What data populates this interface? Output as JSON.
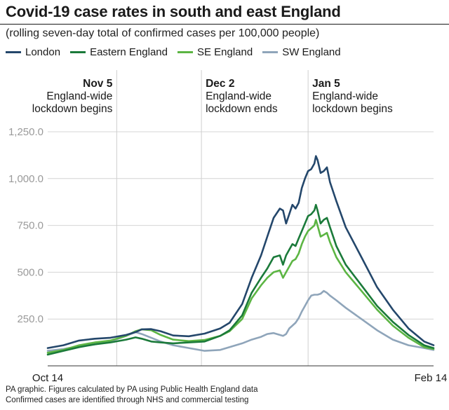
{
  "chart_data": {
    "type": "line",
    "title": "Covid-19 case rates in south and east England",
    "subtitle": "(rolling seven-day total of confirmed cases per 100,000 people)",
    "x_start_label": "Oct 14",
    "x_end_label": "Feb 14",
    "x_days": 123,
    "ylim": [
      0,
      1250
    ],
    "yticks": [
      "1,250.0",
      "1,000.0",
      "750.0",
      "500.0",
      "250.0"
    ],
    "ytick_values": [
      1250,
      1000,
      750,
      500,
      250
    ],
    "annotations": [
      {
        "day": 22,
        "date": "Nov 5",
        "text1": "England-wide",
        "text2": "lockdown begins",
        "align": "end"
      },
      {
        "day": 49,
        "date": "Dec 2",
        "text1": "England-wide",
        "text2": "lockdown ends",
        "align": "start"
      },
      {
        "day": 83,
        "date": "Jan 5",
        "text1": "England-wide",
        "text2": "lockdown begins",
        "align": "start"
      }
    ],
    "series": [
      {
        "name": "London",
        "color": "#24476b",
        "points": [
          [
            0,
            95
          ],
          [
            5,
            110
          ],
          [
            10,
            135
          ],
          [
            15,
            145
          ],
          [
            20,
            150
          ],
          [
            25,
            165
          ],
          [
            28,
            180
          ],
          [
            30,
            195
          ],
          [
            33,
            196
          ],
          [
            36,
            185
          ],
          [
            40,
            162
          ],
          [
            45,
            158
          ],
          [
            50,
            172
          ],
          [
            55,
            200
          ],
          [
            58,
            230
          ],
          [
            62,
            330
          ],
          [
            65,
            470
          ],
          [
            68,
            590
          ],
          [
            70,
            690
          ],
          [
            72,
            790
          ],
          [
            74,
            840
          ],
          [
            75,
            830
          ],
          [
            76,
            760
          ],
          [
            77,
            810
          ],
          [
            78,
            860
          ],
          [
            79,
            840
          ],
          [
            80,
            870
          ],
          [
            81,
            950
          ],
          [
            82,
            1000
          ],
          [
            83,
            1040
          ],
          [
            84,
            1050
          ],
          [
            85,
            1080
          ],
          [
            85.5,
            1120
          ],
          [
            86,
            1100
          ],
          [
            87,
            1030
          ],
          [
            88,
            1040
          ],
          [
            89,
            1060
          ],
          [
            90,
            980
          ],
          [
            91,
            930
          ],
          [
            92,
            880
          ],
          [
            95,
            740
          ],
          [
            100,
            580
          ],
          [
            105,
            420
          ],
          [
            110,
            300
          ],
          [
            115,
            200
          ],
          [
            120,
            130
          ],
          [
            123,
            110
          ]
        ]
      },
      {
        "name": "Eastern England",
        "color": "#1b7a3a",
        "points": [
          [
            0,
            60
          ],
          [
            5,
            80
          ],
          [
            10,
            100
          ],
          [
            15,
            115
          ],
          [
            20,
            125
          ],
          [
            25,
            140
          ],
          [
            28,
            152
          ],
          [
            30,
            145
          ],
          [
            33,
            130
          ],
          [
            36,
            125
          ],
          [
            40,
            120
          ],
          [
            45,
            125
          ],
          [
            50,
            130
          ],
          [
            55,
            160
          ],
          [
            58,
            190
          ],
          [
            62,
            270
          ],
          [
            65,
            390
          ],
          [
            68,
            470
          ],
          [
            70,
            520
          ],
          [
            72,
            580
          ],
          [
            74,
            590
          ],
          [
            75,
            540
          ],
          [
            76,
            590
          ],
          [
            77,
            620
          ],
          [
            78,
            650
          ],
          [
            79,
            640
          ],
          [
            80,
            680
          ],
          [
            81,
            720
          ],
          [
            82,
            760
          ],
          [
            83,
            800
          ],
          [
            84,
            810
          ],
          [
            85,
            830
          ],
          [
            85.5,
            860
          ],
          [
            86,
            830
          ],
          [
            87,
            760
          ],
          [
            88,
            780
          ],
          [
            89,
            790
          ],
          [
            90,
            740
          ],
          [
            91,
            690
          ],
          [
            92,
            640
          ],
          [
            95,
            540
          ],
          [
            100,
            430
          ],
          [
            105,
            320
          ],
          [
            110,
            235
          ],
          [
            115,
            165
          ],
          [
            120,
            110
          ],
          [
            123,
            95
          ]
        ]
      },
      {
        "name": "SE England",
        "color": "#5cb543",
        "points": [
          [
            0,
            70
          ],
          [
            5,
            85
          ],
          [
            10,
            110
          ],
          [
            15,
            125
          ],
          [
            20,
            135
          ],
          [
            25,
            160
          ],
          [
            28,
            185
          ],
          [
            30,
            195
          ],
          [
            33,
            190
          ],
          [
            36,
            165
          ],
          [
            40,
            140
          ],
          [
            45,
            132
          ],
          [
            50,
            138
          ],
          [
            55,
            160
          ],
          [
            58,
            185
          ],
          [
            62,
            250
          ],
          [
            65,
            360
          ],
          [
            68,
            430
          ],
          [
            70,
            470
          ],
          [
            72,
            500
          ],
          [
            74,
            510
          ],
          [
            75,
            470
          ],
          [
            76,
            500
          ],
          [
            77,
            530
          ],
          [
            78,
            560
          ],
          [
            79,
            570
          ],
          [
            80,
            600
          ],
          [
            81,
            650
          ],
          [
            82,
            690
          ],
          [
            83,
            720
          ],
          [
            84,
            735
          ],
          [
            85,
            750
          ],
          [
            85.5,
            780
          ],
          [
            86,
            750
          ],
          [
            87,
            690
          ],
          [
            88,
            700
          ],
          [
            89,
            710
          ],
          [
            90,
            660
          ],
          [
            91,
            620
          ],
          [
            92,
            580
          ],
          [
            95,
            500
          ],
          [
            100,
            400
          ],
          [
            105,
            300
          ],
          [
            110,
            215
          ],
          [
            115,
            150
          ],
          [
            120,
            100
          ],
          [
            123,
            90
          ]
        ]
      },
      {
        "name": "SW England",
        "color": "#8fa5ba",
        "points": [
          [
            0,
            80
          ],
          [
            5,
            90
          ],
          [
            10,
            105
          ],
          [
            15,
            115
          ],
          [
            20,
            130
          ],
          [
            25,
            160
          ],
          [
            28,
            180
          ],
          [
            30,
            170
          ],
          [
            33,
            150
          ],
          [
            36,
            130
          ],
          [
            40,
            110
          ],
          [
            45,
            95
          ],
          [
            50,
            80
          ],
          [
            55,
            85
          ],
          [
            58,
            100
          ],
          [
            62,
            120
          ],
          [
            65,
            140
          ],
          [
            68,
            155
          ],
          [
            70,
            170
          ],
          [
            72,
            175
          ],
          [
            74,
            165
          ],
          [
            75,
            160
          ],
          [
            76,
            170
          ],
          [
            77,
            200
          ],
          [
            78,
            215
          ],
          [
            79,
            230
          ],
          [
            80,
            255
          ],
          [
            81,
            290
          ],
          [
            82,
            320
          ],
          [
            83,
            350
          ],
          [
            84,
            375
          ],
          [
            85,
            380
          ],
          [
            86,
            380
          ],
          [
            87,
            385
          ],
          [
            88,
            400
          ],
          [
            89,
            390
          ],
          [
            90,
            375
          ],
          [
            92,
            350
          ],
          [
            95,
            310
          ],
          [
            100,
            250
          ],
          [
            105,
            190
          ],
          [
            110,
            140
          ],
          [
            115,
            110
          ],
          [
            120,
            95
          ],
          [
            123,
            85
          ]
        ]
      }
    ]
  },
  "footer": {
    "line1": "PA graphic. Figures calculated by PA using Public Health England data",
    "line2": "Confirmed cases are identified through NHS and commercial testing"
  }
}
